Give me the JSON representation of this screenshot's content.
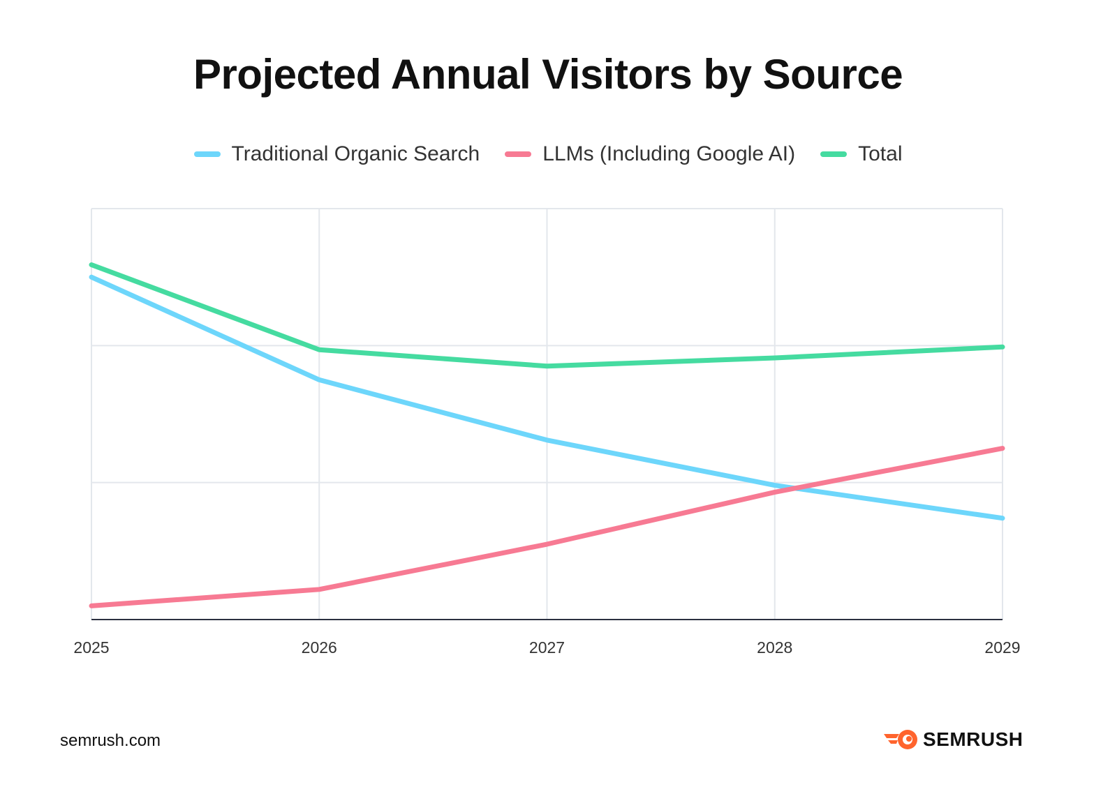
{
  "chart_data": {
    "type": "line",
    "title": "Projected Annual Visitors by Source",
    "xlabel": "",
    "ylabel": "",
    "x": [
      "2025",
      "2026",
      "2027",
      "2028",
      "2029"
    ],
    "ylim": [
      0,
      3
    ],
    "y_tick_labels_shown": false,
    "grid": true,
    "legend_placement": "top",
    "series": [
      {
        "name": "Traditional Organic Search",
        "color": "#6dd6fb",
        "values": [
          2.5,
          1.75,
          1.31,
          0.98,
          0.74
        ]
      },
      {
        "name": "LLMs (Including Google AI)",
        "color": "#f77a93",
        "values": [
          0.1,
          0.22,
          0.55,
          0.93,
          1.25
        ]
      },
      {
        "name": "Total",
        "color": "#45dba0",
        "values": [
          2.59,
          1.97,
          1.85,
          1.91,
          1.99
        ]
      }
    ]
  },
  "footer": {
    "source": "semrush.com",
    "logo_text": "SEMRUSH",
    "logo_color": "#ff642d"
  }
}
